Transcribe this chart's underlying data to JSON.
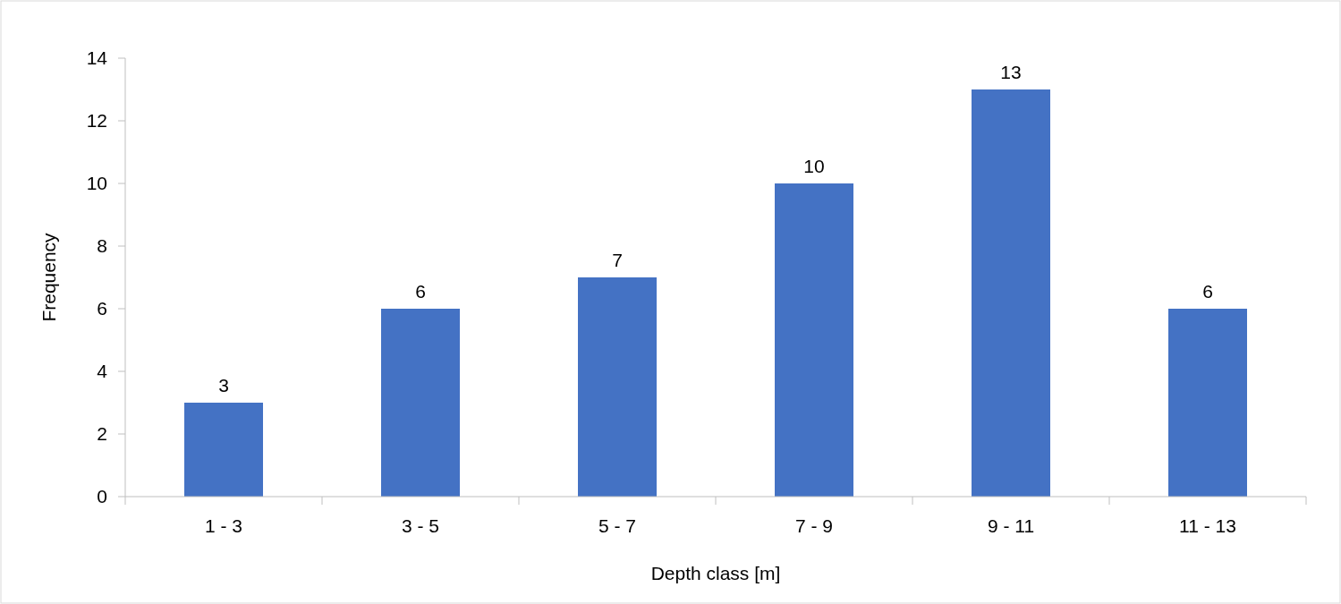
{
  "chart_data": {
    "type": "bar",
    "xlabel": "Depth class [m]",
    "ylabel": "Frequency",
    "categories": [
      "1 - 3",
      "3 - 5",
      "5 - 7",
      "7 - 9",
      "9 - 11",
      "11 - 13"
    ],
    "values": [
      3,
      6,
      7,
      10,
      13,
      6
    ],
    "color": "#4472c4",
    "ylim": [
      0,
      14
    ],
    "yticks": [
      0,
      2,
      4,
      6,
      8,
      10,
      12,
      14
    ],
    "data_labels": true
  }
}
